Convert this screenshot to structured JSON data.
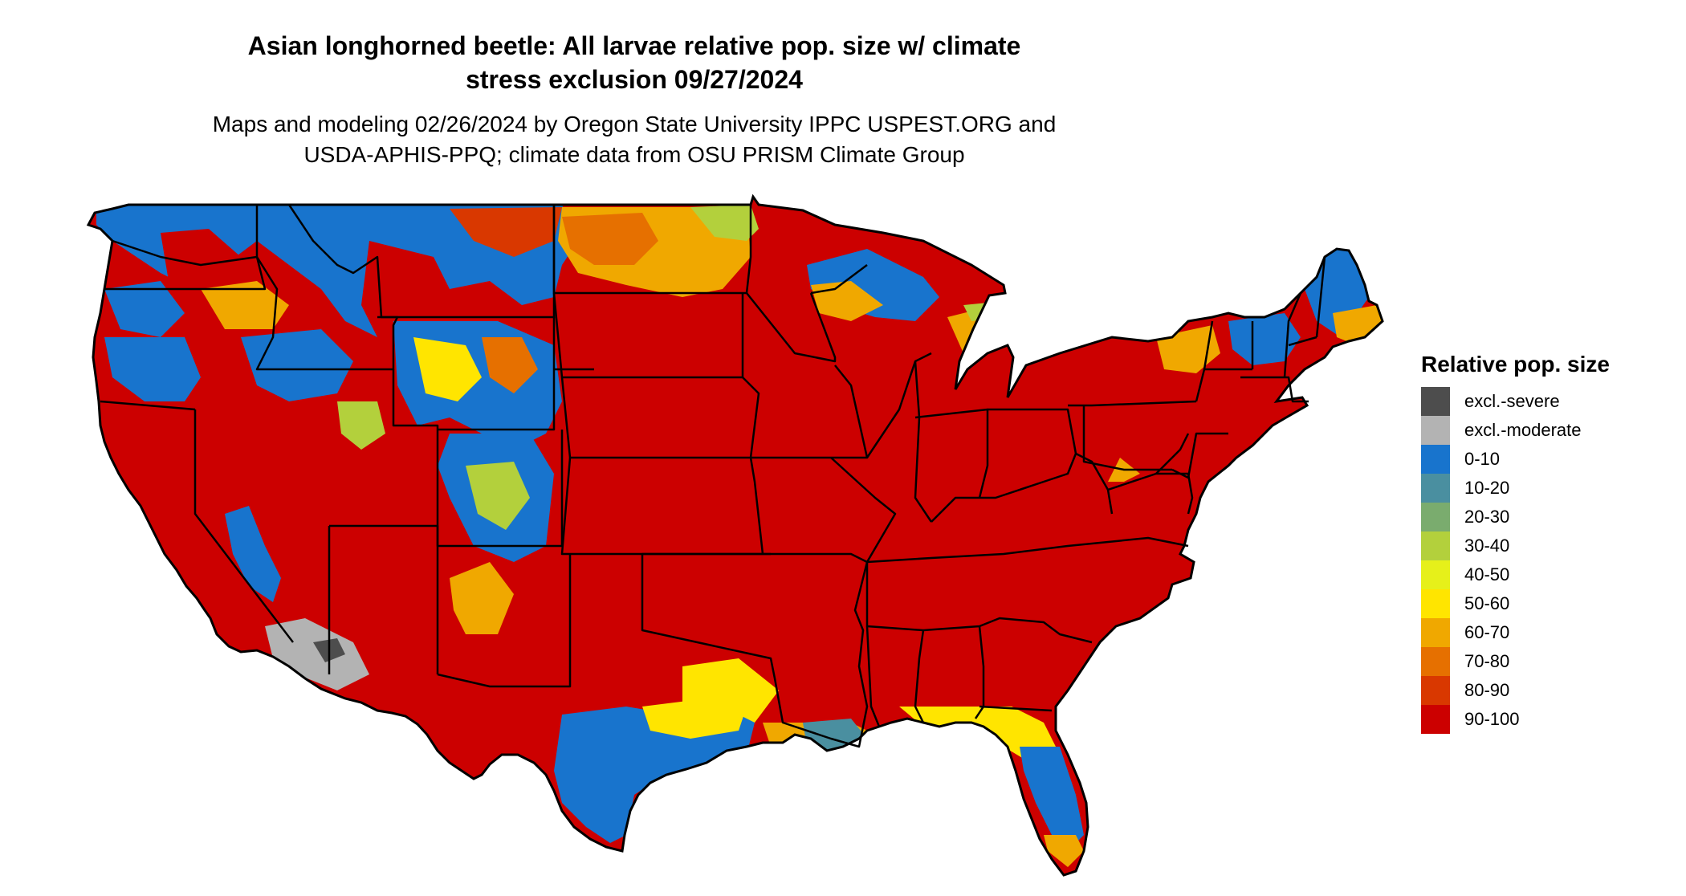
{
  "map": {
    "title_line1": "Asian longhorned beetle: All larvae relative pop. size w/ climate",
    "title_line2": "stress exclusion 09/27/2024",
    "subtitle_line1": "Maps and modeling 02/26/2024 by Oregon State University IPPC USPEST.ORG and",
    "subtitle_line2": "USDA-APHIS-PPQ; climate data from OSU PRISM Climate Group"
  },
  "legend": {
    "title": "Relative pop. size",
    "items": [
      {
        "label": "excl.-severe",
        "color": "#4d4d4d"
      },
      {
        "label": "excl.-moderate",
        "color": "#b3b3b3"
      },
      {
        "label": "0-10",
        "color": "#1874cd"
      },
      {
        "label": "10-20",
        "color": "#4a8fa0"
      },
      {
        "label": "20-30",
        "color": "#7aac6e"
      },
      {
        "label": "30-40",
        "color": "#b3d03c"
      },
      {
        "label": "40-50",
        "color": "#e6f01a"
      },
      {
        "label": "50-60",
        "color": "#ffe500"
      },
      {
        "label": "60-70",
        "color": "#f0a800"
      },
      {
        "label": "70-80",
        "color": "#e67000"
      },
      {
        "label": "80-90",
        "color": "#d93800"
      },
      {
        "label": "90-100",
        "color": "#cc0000"
      }
    ]
  }
}
